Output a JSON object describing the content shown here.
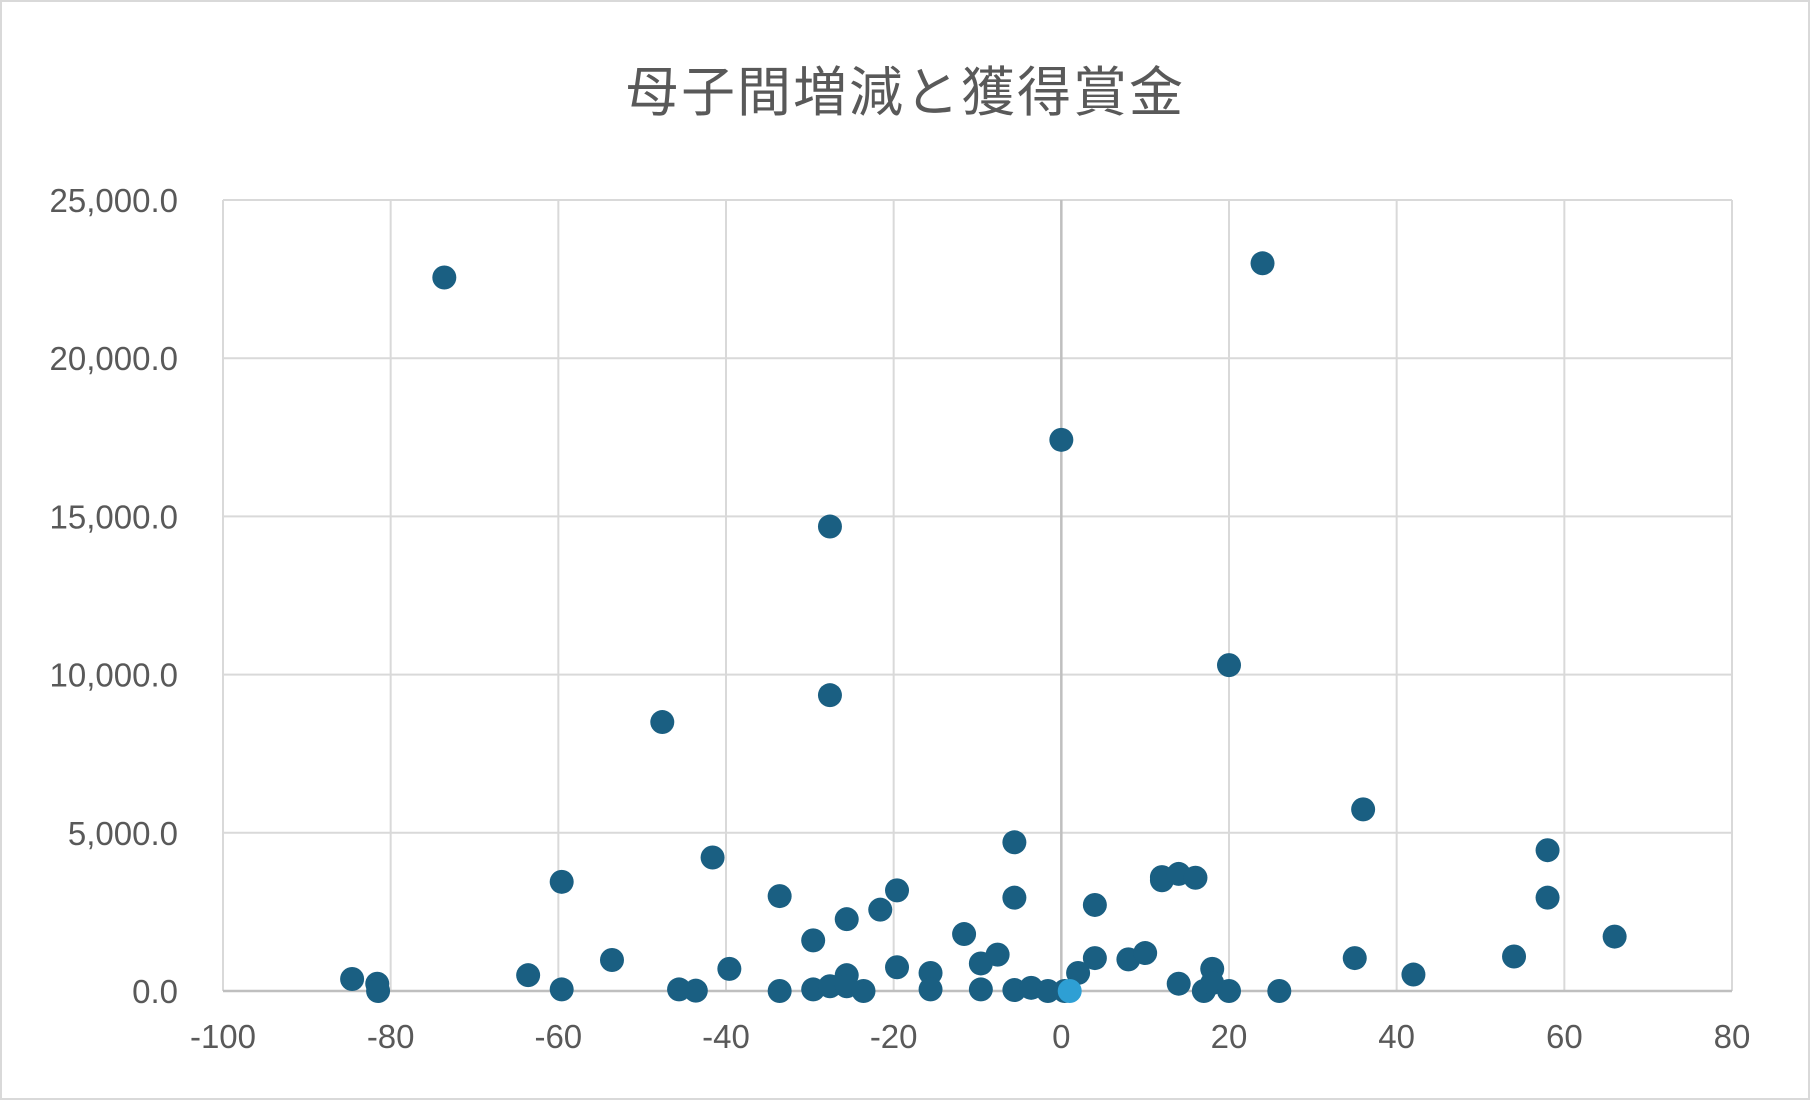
{
  "chart_data": {
    "type": "scatter",
    "title": "母子間増減と獲得賞金",
    "xlabel": "",
    "ylabel": "",
    "xlim": [
      -100,
      80
    ],
    "ylim": [
      0,
      25000
    ],
    "x_ticks": [
      "-100",
      "-80",
      "-60",
      "-40",
      "-20",
      "0",
      "20",
      "40",
      "60",
      "80"
    ],
    "x_tick_values": [
      -100,
      -80,
      -60,
      -40,
      -20,
      0,
      20,
      40,
      60,
      80
    ],
    "y_ticks": [
      "0.0",
      "5,000.0",
      "10,000.0",
      "15,000.0",
      "20,000.0",
      "25,000.0"
    ],
    "y_tick_values": [
      0,
      5000,
      10000,
      15000,
      20000,
      25000
    ],
    "grid": true,
    "legend": "none",
    "colors": {
      "marker": "#1a5f82",
      "highlight": "#2e9fd4",
      "grid": "#d9d9d9",
      "text": "#595959"
    },
    "points": [
      {
        "x": -73.6,
        "y": 22550
      },
      {
        "x": -84.6,
        "y": 380
      },
      {
        "x": -81.6,
        "y": 230
      },
      {
        "x": -81.5,
        "y": 0
      },
      {
        "x": -63.6,
        "y": 500
      },
      {
        "x": -59.6,
        "y": 3450
      },
      {
        "x": -59.6,
        "y": 50
      },
      {
        "x": -53.6,
        "y": 980
      },
      {
        "x": -47.6,
        "y": 8500
      },
      {
        "x": -45.6,
        "y": 50
      },
      {
        "x": -43.6,
        "y": 10
      },
      {
        "x": -41.6,
        "y": 4220
      },
      {
        "x": -39.6,
        "y": 700
      },
      {
        "x": -33.6,
        "y": 3000
      },
      {
        "x": -33.6,
        "y": 0
      },
      {
        "x": -29.6,
        "y": 1600
      },
      {
        "x": -29.6,
        "y": 50
      },
      {
        "x": -27.6,
        "y": 14680
      },
      {
        "x": -27.6,
        "y": 9350
      },
      {
        "x": -27.6,
        "y": 150
      },
      {
        "x": -25.6,
        "y": 2270
      },
      {
        "x": -25.6,
        "y": 500
      },
      {
        "x": -25.6,
        "y": 150
      },
      {
        "x": -23.6,
        "y": 0
      },
      {
        "x": -21.6,
        "y": 2570
      },
      {
        "x": -19.6,
        "y": 3180
      },
      {
        "x": -19.6,
        "y": 750
      },
      {
        "x": -15.6,
        "y": 570
      },
      {
        "x": -15.6,
        "y": 50
      },
      {
        "x": -11.6,
        "y": 1800
      },
      {
        "x": -9.6,
        "y": 870
      },
      {
        "x": -9.6,
        "y": 50
      },
      {
        "x": -7.6,
        "y": 1150
      },
      {
        "x": -5.6,
        "y": 4700
      },
      {
        "x": -5.6,
        "y": 2950
      },
      {
        "x": -5.6,
        "y": 30
      },
      {
        "x": -3.6,
        "y": 100
      },
      {
        "x": -1.6,
        "y": 0
      },
      {
        "x": 0.0,
        "y": 17420
      },
      {
        "x": 0.4,
        "y": 0
      },
      {
        "x": 2.0,
        "y": 570
      },
      {
        "x": 4.0,
        "y": 2720
      },
      {
        "x": 4.0,
        "y": 1040
      },
      {
        "x": 8.0,
        "y": 1000
      },
      {
        "x": 10.0,
        "y": 1200
      },
      {
        "x": 12.0,
        "y": 3600
      },
      {
        "x": 12.0,
        "y": 3500
      },
      {
        "x": 14.0,
        "y": 3700
      },
      {
        "x": 14.0,
        "y": 230
      },
      {
        "x": 16.0,
        "y": 3580
      },
      {
        "x": 17.0,
        "y": 0
      },
      {
        "x": 18.0,
        "y": 700
      },
      {
        "x": 18.0,
        "y": 250
      },
      {
        "x": 20.0,
        "y": 10300
      },
      {
        "x": 20.0,
        "y": 0
      },
      {
        "x": 24.0,
        "y": 23000
      },
      {
        "x": 26.0,
        "y": 0
      },
      {
        "x": 35.0,
        "y": 1040
      },
      {
        "x": 36.0,
        "y": 5740
      },
      {
        "x": 42.0,
        "y": 520
      },
      {
        "x": 54.0,
        "y": 1090
      },
      {
        "x": 58.0,
        "y": 4450
      },
      {
        "x": 58.0,
        "y": 2950
      },
      {
        "x": 66.0,
        "y": 1720
      }
    ],
    "highlight_point": {
      "x": 1.0,
      "y": 0
    }
  }
}
